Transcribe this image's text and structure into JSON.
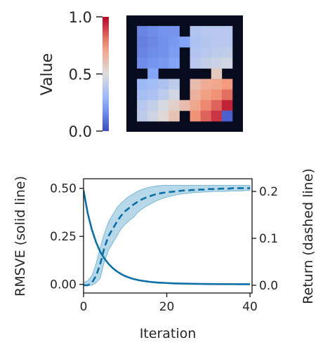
{
  "chart_data": [
    {
      "type": "heatmap",
      "title": "",
      "colorbar": {
        "label": "Value",
        "ticks": [
          "0.0",
          "0.5",
          "1.0"
        ],
        "range": [
          0,
          1
        ],
        "colormap": "coolwarm"
      },
      "grid_size": 11,
      "wall_color": "#070b1e",
      "wall_value": null,
      "values": [
        [
          null,
          null,
          null,
          null,
          null,
          null,
          null,
          null,
          null,
          null,
          null
        ],
        [
          null,
          0.14,
          0.16,
          0.18,
          0.18,
          null,
          0.36,
          0.38,
          0.38,
          0.38,
          null
        ],
        [
          null,
          0.13,
          0.15,
          0.17,
          0.19,
          0.22,
          0.35,
          0.37,
          0.38,
          0.38,
          null
        ],
        [
          null,
          0.14,
          0.16,
          0.17,
          0.2,
          null,
          0.36,
          0.38,
          0.4,
          0.41,
          null
        ],
        [
          null,
          0.16,
          0.18,
          0.19,
          0.22,
          null,
          0.38,
          0.42,
          0.44,
          0.46,
          null
        ],
        [
          null,
          null,
          0.22,
          null,
          null,
          null,
          null,
          null,
          0.58,
          null,
          null
        ],
        [
          null,
          0.3,
          0.32,
          0.35,
          0.4,
          null,
          0.62,
          0.68,
          0.7,
          0.74,
          null
        ],
        [
          null,
          0.33,
          0.35,
          0.4,
          0.46,
          null,
          0.66,
          0.72,
          0.76,
          0.82,
          null
        ],
        [
          null,
          0.38,
          0.42,
          0.48,
          0.55,
          0.62,
          0.7,
          0.78,
          0.84,
          0.95,
          null
        ],
        [
          null,
          0.4,
          0.45,
          0.52,
          0.6,
          null,
          0.76,
          0.84,
          0.92,
          0.05,
          null
        ],
        [
          null,
          null,
          null,
          null,
          null,
          null,
          null,
          null,
          null,
          null,
          null
        ]
      ]
    },
    {
      "type": "line",
      "xlabel": "Iteration",
      "ylabel": "RMSVE (solid line)",
      "y2label": "Return (dashed line)",
      "xlim": [
        0,
        40.5
      ],
      "ylim": [
        -0.045,
        0.55
      ],
      "y2lim": [
        -0.0165,
        0.227
      ],
      "xticks": [
        {
          "v": 0,
          "label": "0"
        },
        {
          "v": 20,
          "label": "20"
        },
        {
          "v": 40,
          "label": "40"
        }
      ],
      "yticks": [
        {
          "v": 0,
          "label": "0.00"
        },
        {
          "v": 0.25,
          "label": "0.25"
        },
        {
          "v": 0.5,
          "label": "0.50"
        }
      ],
      "y2ticks": [
        {
          "v": 0,
          "label": "0.0"
        },
        {
          "v": 0.1,
          "label": "0.1"
        },
        {
          "v": 0.2,
          "label": "0.2"
        }
      ],
      "color": "#0b6fa8",
      "band_color": "#7ab8d6",
      "series": [
        {
          "axis": "left",
          "style": "solid",
          "x": [
            0,
            1,
            2,
            3,
            4,
            5,
            6,
            7,
            8,
            9,
            10,
            11,
            12,
            13,
            14,
            15,
            16,
            17,
            18,
            19,
            20,
            21,
            22,
            23,
            24,
            25,
            26,
            27,
            28,
            29,
            30,
            31,
            32,
            33,
            34,
            35,
            36,
            37,
            38,
            39,
            40
          ],
          "values": [
            0.49,
            0.37,
            0.285,
            0.22,
            0.17,
            0.135,
            0.107,
            0.085,
            0.068,
            0.054,
            0.043,
            0.035,
            0.028,
            0.023,
            0.019,
            0.016,
            0.013,
            0.011,
            0.009,
            0.008,
            0.007,
            0.006,
            0.005,
            0.0045,
            0.004,
            0.0035,
            0.003,
            0.0027,
            0.0024,
            0.0021,
            0.0019,
            0.0017,
            0.0015,
            0.0014,
            0.0013,
            0.0012,
            0.0011,
            0.001,
            0.0009,
            0.0008,
            0.0008
          ]
        },
        {
          "axis": "right",
          "style": "dashed",
          "x": [
            0,
            1,
            2,
            3,
            4,
            5,
            6,
            7,
            8,
            9,
            10,
            11,
            12,
            13,
            14,
            15,
            16,
            17,
            18,
            19,
            20,
            21,
            22,
            23,
            24,
            25,
            26,
            27,
            28,
            29,
            30,
            31,
            32,
            33,
            34,
            35,
            36,
            37,
            38,
            39,
            40
          ],
          "values": [
            0.0,
            0.0,
            0.005,
            0.02,
            0.045,
            0.08,
            0.105,
            0.12,
            0.135,
            0.148,
            0.158,
            0.165,
            0.172,
            0.178,
            0.183,
            0.187,
            0.19,
            0.193,
            0.195,
            0.197,
            0.198,
            0.199,
            0.2,
            0.201,
            0.202,
            0.202,
            0.203,
            0.203,
            0.204,
            0.204,
            0.205,
            0.205,
            0.205,
            0.206,
            0.206,
            0.206,
            0.207,
            0.207,
            0.207,
            0.207,
            0.207
          ],
          "band_low": [
            0.0,
            0.0,
            0.0,
            0.005,
            0.015,
            0.05,
            0.075,
            0.09,
            0.105,
            0.12,
            0.13,
            0.138,
            0.145,
            0.155,
            0.162,
            0.168,
            0.173,
            0.178,
            0.182,
            0.185,
            0.188,
            0.19,
            0.192,
            0.194,
            0.195,
            0.196,
            0.197,
            0.198,
            0.198,
            0.199,
            0.199,
            0.2,
            0.2,
            0.2,
            0.2,
            0.201,
            0.201,
            0.201,
            0.201,
            0.202,
            0.202
          ],
          "band_high": [
            0.005,
            0.01,
            0.02,
            0.045,
            0.08,
            0.11,
            0.135,
            0.15,
            0.165,
            0.175,
            0.183,
            0.19,
            0.195,
            0.2,
            0.204,
            0.207,
            0.209,
            0.211,
            0.212,
            0.213,
            0.213,
            0.213,
            0.213,
            0.213,
            0.213,
            0.213,
            0.213,
            0.213,
            0.213,
            0.213,
            0.213,
            0.213,
            0.213,
            0.213,
            0.213,
            0.213,
            0.213,
            0.213,
            0.213,
            0.213,
            0.213
          ]
        }
      ]
    }
  ]
}
